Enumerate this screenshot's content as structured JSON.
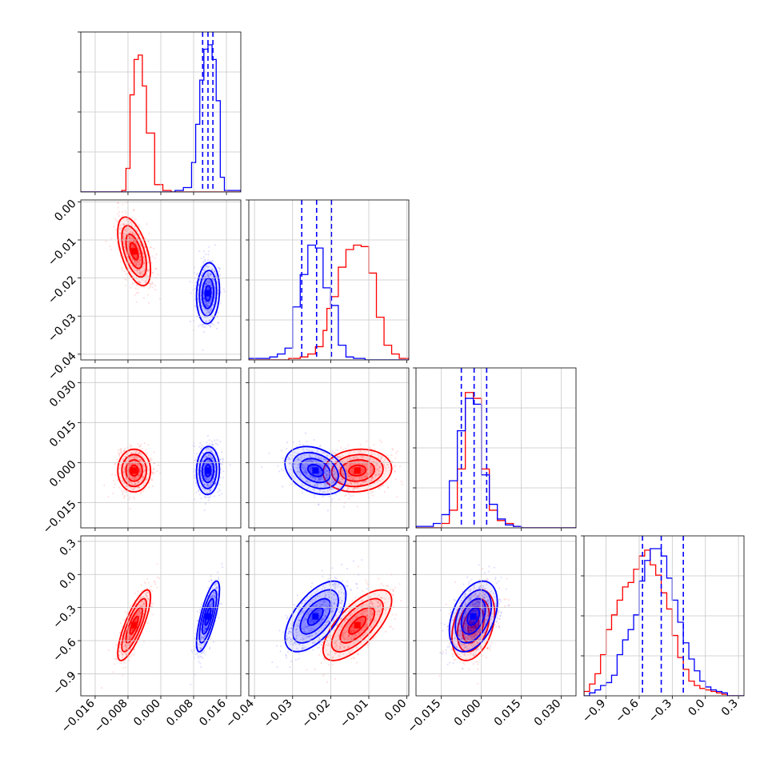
{
  "chart_data": {
    "type": "corner",
    "title": "",
    "colors": {
      "series_a": "#ff0000",
      "series_b": "#0000ff"
    },
    "params": [
      {
        "ticks": [
          -0.016,
          -0.008,
          0.0,
          0.008,
          0.016
        ],
        "tick_labels": [
          "−0.016",
          "−0.008",
          "0.000",
          "0.008",
          "0.016"
        ],
        "range": [
          -0.0195,
          0.0195
        ]
      },
      {
        "ticks": [
          -0.04,
          -0.03,
          -0.02,
          -0.01,
          0.0
        ],
        "tick_labels": [
          "−0.04",
          "−0.03",
          "−0.02",
          "−0.01",
          "0.00"
        ],
        "range": [
          -0.0415,
          0.0005
        ]
      },
      {
        "ticks": [
          -0.015,
          0.0,
          0.015,
          0.03
        ],
        "tick_labels": [
          "−0.015",
          "0.000",
          "0.015",
          "0.030"
        ],
        "range": [
          -0.0245,
          0.0355
        ]
      },
      {
        "ticks": [
          -0.9,
          -0.6,
          -0.3,
          0.0,
          0.3
        ],
        "tick_labels": [
          "−0.9",
          "−0.6",
          "−0.3",
          "0.0",
          "0.3"
        ],
        "range": [
          -1.1,
          0.35
        ]
      }
    ],
    "series": [
      {
        "color": "#ff0000",
        "mean": [
          -0.0065,
          -0.013,
          -0.003,
          -0.46
        ],
        "std": [
          0.002,
          0.0045,
          0.004,
          0.16
        ]
      },
      {
        "color": "#0000ff",
        "mean": [
          0.0115,
          -0.024,
          -0.003,
          -0.38
        ],
        "std": [
          0.0014,
          0.004,
          0.0045,
          0.16
        ]
      }
    ],
    "quantiles": [
      [
        0.0102,
        0.0115,
        0.0127
      ],
      [
        -0.0276,
        -0.0237,
        -0.0198
      ],
      [
        -0.0075,
        -0.0027,
        0.002
      ],
      [
        -0.57,
        -0.4,
        -0.2
      ]
    ],
    "hist_1d": [
      {
        "series": [
          {
            "edges": [
              -0.0195,
              -0.0175,
              -0.0155,
              -0.0135,
              -0.0115,
              -0.0095,
              -0.0085,
              -0.0075,
              -0.0065,
              -0.0055,
              -0.0045,
              -0.0035,
              -0.0015,
              0.0005,
              0.0025,
              0.0195
            ],
            "counts": [
              0,
              0,
              0,
              0,
              0,
              0.01,
              0.16,
              0.66,
              0.9,
              0.93,
              0.72,
              0.4,
              0.05,
              0.01,
              0
            ]
          },
          {
            "edges": [
              -0.0195,
              0.0035,
              0.0055,
              0.0075,
              0.0085,
              0.0095,
              0.0105,
              0.0115,
              0.0125,
              0.0135,
              0.0145,
              0.0155,
              0.0195
            ],
            "counts": [
              0,
              0.01,
              0.03,
              0.2,
              0.46,
              0.76,
              0.97,
              1.0,
              0.9,
              0.62,
              0.1,
              0.01
            ]
          }
        ]
      },
      {
        "series": [
          {
            "edges": [
              -0.0415,
              -0.031,
              -0.028,
              -0.026,
              -0.024,
              -0.022,
              -0.021,
              -0.02,
              -0.018,
              -0.016,
              -0.014,
              -0.012,
              -0.01,
              -0.008,
              -0.006,
              -0.004,
              -0.002,
              0.0005
            ],
            "counts": [
              0,
              0.01,
              0.02,
              0.04,
              0.09,
              0.2,
              0.35,
              0.43,
              0.63,
              0.75,
              0.78,
              0.77,
              0.59,
              0.29,
              0.1,
              0.04,
              0.01
            ]
          },
          {
            "edges": [
              -0.0415,
              -0.036,
              -0.034,
              -0.032,
              -0.03,
              -0.028,
              -0.026,
              -0.024,
              -0.022,
              -0.02,
              -0.018,
              -0.016,
              -0.014,
              -0.011,
              0.0005
            ],
            "counts": [
              0.01,
              0.02,
              0.04,
              0.08,
              0.36,
              0.58,
              0.78,
              0.76,
              0.49,
              0.37,
              0.1,
              0.02,
              0.01,
              0
            ]
          }
        ]
      },
      {
        "series": [
          {
            "edges": [
              -0.0245,
              -0.015,
              -0.012,
              -0.009,
              -0.006,
              -0.003,
              0.0,
              0.003,
              0.006,
              0.009,
              0.012,
              0.015,
              0.0355
            ],
            "counts": [
              0,
              0.03,
              0.12,
              0.4,
              0.92,
              0.88,
              0.4,
              0.12,
              0.05,
              0.03,
              0.01,
              0
            ]
          },
          {
            "edges": [
              -0.0245,
              -0.018,
              -0.015,
              -0.012,
              -0.009,
              -0.006,
              -0.003,
              0.0,
              0.003,
              0.006,
              0.009,
              0.012,
              0.015,
              0.0355
            ],
            "counts": [
              0.01,
              0.03,
              0.09,
              0.32,
              0.66,
              0.88,
              0.84,
              0.36,
              0.16,
              0.06,
              0.02,
              0.01,
              0
            ]
          }
        ]
      },
      {
        "series": [
          {
            "edges": [
              -1.1,
              -1.05,
              -1.0,
              -0.95,
              -0.9,
              -0.85,
              -0.8,
              -0.75,
              -0.7,
              -0.65,
              -0.6,
              -0.55,
              -0.5,
              -0.45,
              -0.4,
              -0.35,
              -0.3,
              -0.25,
              -0.2,
              -0.15,
              -0.1,
              -0.05,
              0.0,
              0.05,
              0.1,
              0.15,
              0.2,
              0.35
            ],
            "counts": [
              0.03,
              0.08,
              0.15,
              0.28,
              0.45,
              0.55,
              0.65,
              0.74,
              0.77,
              0.86,
              0.95,
              0.99,
              0.89,
              0.82,
              0.7,
              0.59,
              0.41,
              0.26,
              0.18,
              0.1,
              0.07,
              0.05,
              0.04,
              0.03,
              0.02,
              0.01,
              0
            ]
          },
          {
            "edges": [
              -1.1,
              -1.05,
              -1.0,
              -0.95,
              -0.9,
              -0.85,
              -0.8,
              -0.75,
              -0.7,
              -0.65,
              -0.6,
              -0.55,
              -0.5,
              -0.45,
              -0.4,
              -0.35,
              -0.3,
              -0.25,
              -0.2,
              -0.15,
              -0.1,
              -0.05,
              0.0,
              0.05,
              0.1,
              0.15,
              0.2,
              0.35
            ],
            "counts": [
              0,
              0.02,
              0.04,
              0.07,
              0.09,
              0.14,
              0.28,
              0.38,
              0.45,
              0.55,
              0.78,
              0.92,
              1.0,
              1.0,
              0.95,
              0.8,
              0.65,
              0.5,
              0.36,
              0.25,
              0.17,
              0.1,
              0.06,
              0.04,
              0.03,
              0.02,
              0
            ]
          }
        ]
      }
    ],
    "grid": true,
    "legend": "none"
  }
}
